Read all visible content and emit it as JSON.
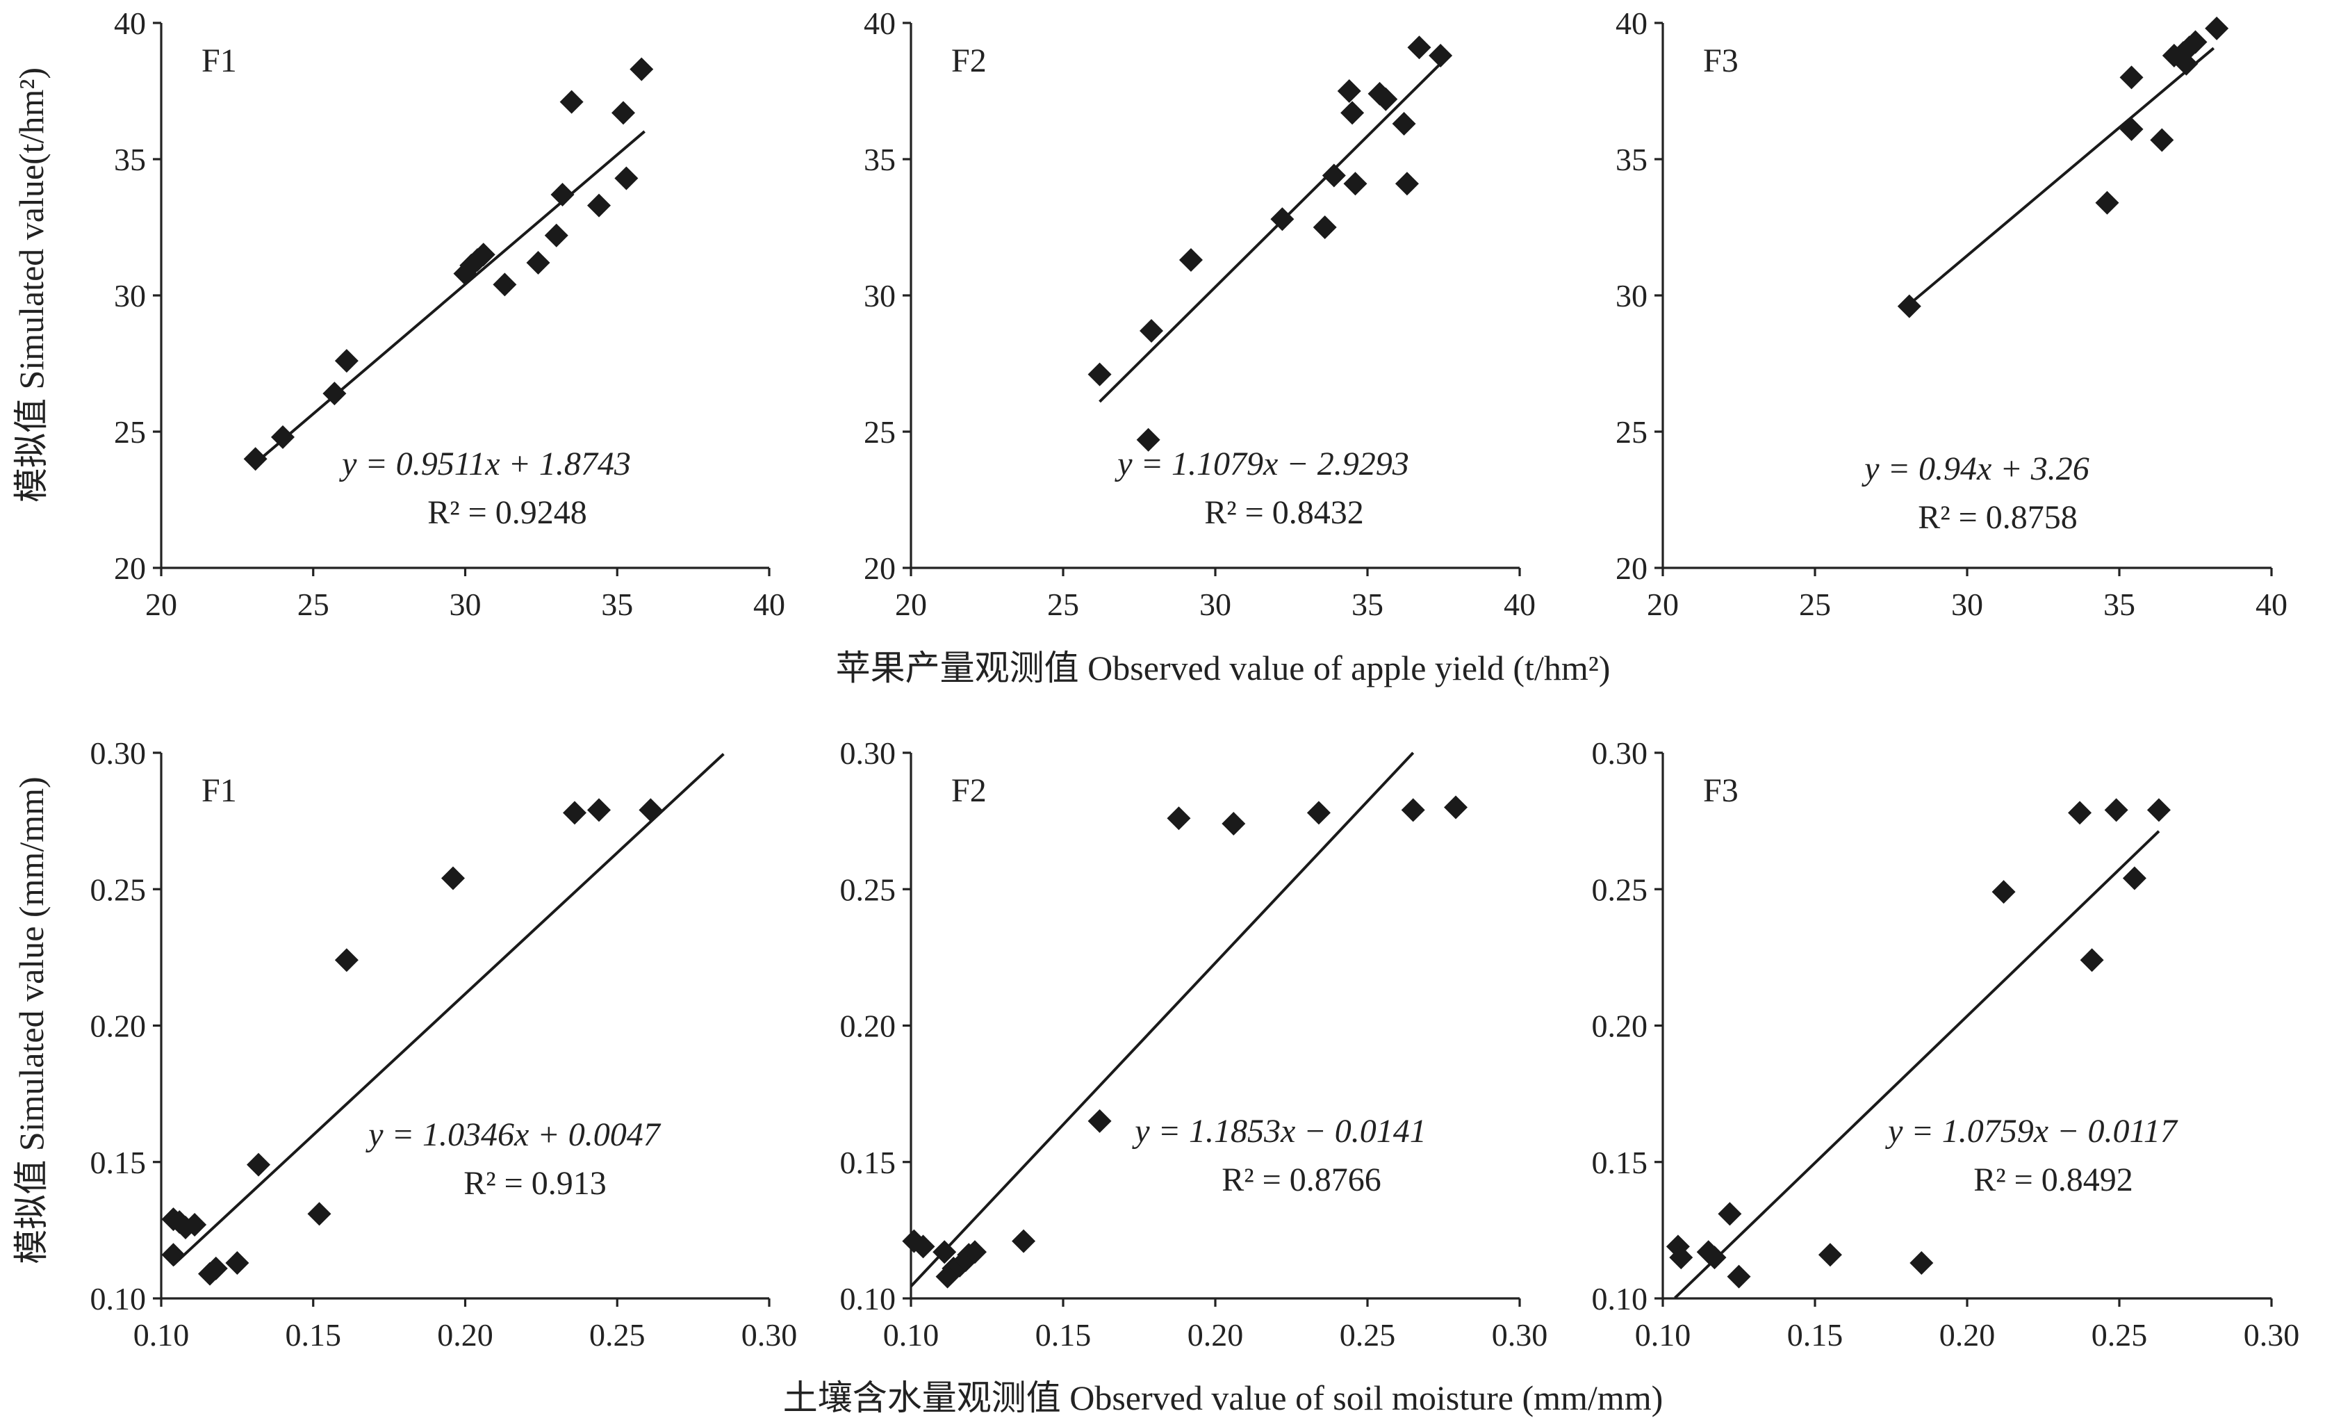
{
  "row_labels": {
    "top_y": "模拟值 Simulated value(t/hm²)",
    "top_x": "苹果产量观测值 Observed value of apple yield (t/hm²)",
    "bottom_y": "模拟值 Simulated value (mm/mm)",
    "bottom_x": "土壤含水量观测值 Observed value of soil moisture (mm/mm)"
  },
  "chart_data": [
    {
      "type": "scatter",
      "row": "top",
      "panel": "F1",
      "title": "F1",
      "xlim": [
        20,
        40
      ],
      "ylim": [
        20,
        40
      ],
      "xticks": [
        "20",
        "25",
        "30",
        "35",
        "40"
      ],
      "yticks": [
        "20",
        "25",
        "30",
        "35",
        "40"
      ],
      "points": [
        [
          23.1,
          24.0
        ],
        [
          24.0,
          24.8
        ],
        [
          25.7,
          26.4
        ],
        [
          26.1,
          27.6
        ],
        [
          30.0,
          30.8
        ],
        [
          30.2,
          31.1
        ],
        [
          30.4,
          31.3
        ],
        [
          30.6,
          31.5
        ],
        [
          31.3,
          30.4
        ],
        [
          32.4,
          31.2
        ],
        [
          33.0,
          32.2
        ],
        [
          33.2,
          33.7
        ],
        [
          33.5,
          37.1
        ],
        [
          34.4,
          33.3
        ],
        [
          35.2,
          36.7
        ],
        [
          35.3,
          34.3
        ],
        [
          35.8,
          38.3
        ]
      ],
      "fit": {
        "slope": 0.9511,
        "intercept": 1.8743,
        "x_range": [
          23.0,
          35.9
        ]
      },
      "equation": "y = 0.9511x + 1.8743",
      "r2_label": "R² = 0.9248"
    },
    {
      "type": "scatter",
      "row": "top",
      "panel": "F2",
      "title": "F2",
      "xlim": [
        20,
        40
      ],
      "ylim": [
        20,
        40
      ],
      "xticks": [
        "20",
        "25",
        "30",
        "35",
        "40"
      ],
      "yticks": [
        "20",
        "25",
        "30",
        "35",
        "40"
      ],
      "points": [
        [
          26.2,
          27.1
        ],
        [
          27.8,
          24.7
        ],
        [
          27.9,
          28.7
        ],
        [
          29.2,
          31.3
        ],
        [
          32.2,
          32.8
        ],
        [
          33.6,
          32.5
        ],
        [
          33.9,
          34.4
        ],
        [
          34.4,
          37.5
        ],
        [
          34.5,
          36.7
        ],
        [
          34.6,
          34.1
        ],
        [
          35.4,
          37.4
        ],
        [
          35.6,
          37.2
        ],
        [
          36.2,
          36.3
        ],
        [
          36.3,
          34.1
        ],
        [
          36.7,
          39.1
        ],
        [
          37.4,
          38.8
        ]
      ],
      "fit": {
        "slope": 1.1079,
        "intercept": -2.9293,
        "x_range": [
          26.2,
          37.4
        ]
      },
      "equation": "y = 1.1079x − 2.9293",
      "r2_label": "R² = 0.8432"
    },
    {
      "type": "scatter",
      "row": "top",
      "panel": "F3",
      "title": "F3",
      "xlim": [
        20,
        40
      ],
      "ylim": [
        20,
        40
      ],
      "xticks": [
        "20",
        "25",
        "30",
        "35",
        "40"
      ],
      "yticks": [
        "20",
        "25",
        "30",
        "35",
        "40"
      ],
      "points": [
        [
          28.1,
          29.6
        ],
        [
          34.6,
          33.4
        ],
        [
          35.4,
          38.0
        ],
        [
          35.4,
          36.1
        ],
        [
          36.4,
          35.7
        ],
        [
          36.8,
          38.8
        ],
        [
          37.1,
          38.9
        ],
        [
          37.2,
          38.5
        ],
        [
          37.3,
          39.1
        ],
        [
          37.5,
          39.3
        ],
        [
          38.2,
          39.8
        ]
      ],
      "fit": {
        "slope": 0.94,
        "intercept": 3.26,
        "x_range": [
          28.1,
          38.1
        ]
      },
      "equation": "y = 0.94x + 3.26",
      "r2_label": "R² = 0.8758"
    },
    {
      "type": "scatter",
      "row": "bottom",
      "panel": "F1",
      "title": "F1",
      "xlim": [
        0.1,
        0.3
      ],
      "ylim": [
        0.1,
        0.3
      ],
      "xticks": [
        "0.10",
        "0.15",
        "0.20",
        "0.25",
        "0.30"
      ],
      "yticks": [
        "0.10",
        "0.15",
        "0.20",
        "0.25",
        "0.30"
      ],
      "points": [
        [
          0.104,
          0.116
        ],
        [
          0.104,
          0.129
        ],
        [
          0.106,
          0.128
        ],
        [
          0.108,
          0.126
        ],
        [
          0.111,
          0.127
        ],
        [
          0.116,
          0.109
        ],
        [
          0.118,
          0.111
        ],
        [
          0.125,
          0.113
        ],
        [
          0.132,
          0.149
        ],
        [
          0.152,
          0.131
        ],
        [
          0.161,
          0.224
        ],
        [
          0.196,
          0.254
        ],
        [
          0.236,
          0.278
        ],
        [
          0.244,
          0.279
        ],
        [
          0.261,
          0.279
        ]
      ],
      "fit": {
        "slope": 1.0346,
        "intercept": 0.0047,
        "x_range": [
          0.104,
          0.285
        ]
      },
      "equation": "y = 1.0346x + 0.0047",
      "r2_label": "R² = 0.913"
    },
    {
      "type": "scatter",
      "row": "bottom",
      "panel": "F2",
      "title": "F2",
      "xlim": [
        0.1,
        0.3
      ],
      "ylim": [
        0.1,
        0.3
      ],
      "xticks": [
        "0.10",
        "0.15",
        "0.20",
        "0.25",
        "0.30"
      ],
      "yticks": [
        "0.10",
        "0.15",
        "0.20",
        "0.25",
        "0.30"
      ],
      "points": [
        [
          0.101,
          0.121
        ],
        [
          0.104,
          0.119
        ],
        [
          0.111,
          0.117
        ],
        [
          0.112,
          0.108
        ],
        [
          0.114,
          0.111
        ],
        [
          0.116,
          0.112
        ],
        [
          0.118,
          0.114
        ],
        [
          0.119,
          0.116
        ],
        [
          0.121,
          0.117
        ],
        [
          0.137,
          0.121
        ],
        [
          0.162,
          0.165
        ],
        [
          0.188,
          0.276
        ],
        [
          0.206,
          0.274
        ],
        [
          0.234,
          0.278
        ],
        [
          0.265,
          0.279
        ],
        [
          0.279,
          0.28
        ]
      ],
      "fit": {
        "slope": 1.1853,
        "intercept": -0.0141,
        "x_range": [
          0.1,
          0.265
        ]
      },
      "equation": "y = 1.1853x − 0.0141",
      "r2_label": "R² = 0.8766"
    },
    {
      "type": "scatter",
      "row": "bottom",
      "panel": "F3",
      "title": "F3",
      "xlim": [
        0.1,
        0.3
      ],
      "ylim": [
        0.1,
        0.3
      ],
      "xticks": [
        "0.10",
        "0.15",
        "0.20",
        "0.25",
        "0.30"
      ],
      "yticks": [
        "0.10",
        "0.15",
        "0.20",
        "0.25",
        "0.30"
      ],
      "points": [
        [
          0.105,
          0.119
        ],
        [
          0.106,
          0.115
        ],
        [
          0.115,
          0.117
        ],
        [
          0.117,
          0.115
        ],
        [
          0.122,
          0.131
        ],
        [
          0.125,
          0.108
        ],
        [
          0.155,
          0.116
        ],
        [
          0.185,
          0.113
        ],
        [
          0.212,
          0.249
        ],
        [
          0.237,
          0.278
        ],
        [
          0.241,
          0.224
        ],
        [
          0.249,
          0.279
        ],
        [
          0.255,
          0.254
        ],
        [
          0.263,
          0.279
        ]
      ],
      "fit": {
        "slope": 1.0759,
        "intercept": -0.0117,
        "x_range": [
          0.104,
          0.263
        ]
      },
      "equation": "y = 1.0759x − 0.0117",
      "r2_label": "R² = 0.8492"
    }
  ]
}
